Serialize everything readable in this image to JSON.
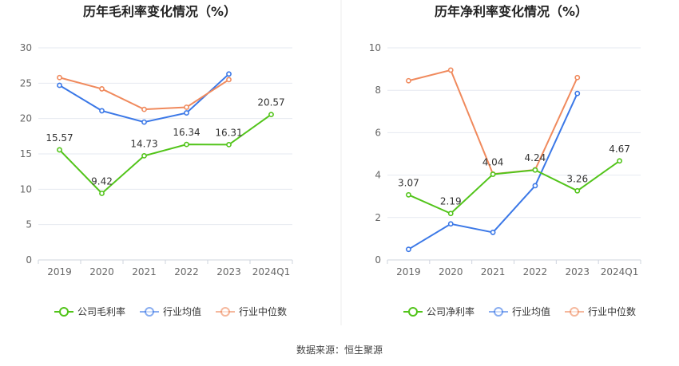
{
  "source": {
    "label": "数据来源：",
    "value": "恒生聚源"
  },
  "colors": {
    "company": "#52c41a",
    "industry_avg": "#3b78e7",
    "industry_median": "#f08a5d",
    "grid": "#e6e9f0",
    "axis_text": "#666666",
    "title_text": "#222222"
  },
  "chart_data": [
    {
      "type": "line",
      "title": "历年毛利率变化情况（%）",
      "categories": [
        "2019",
        "2020",
        "2021",
        "2022",
        "2023",
        "2024Q1"
      ],
      "ylim": [
        0,
        30
      ],
      "yticks": [
        0,
        5,
        10,
        15,
        20,
        25,
        30
      ],
      "grid": true,
      "legend_position": "bottom",
      "series": [
        {
          "name": "公司毛利率",
          "key": "company",
          "values": [
            15.57,
            9.42,
            14.73,
            16.34,
            16.31,
            20.57
          ],
          "labels": [
            "15.57",
            "9.42",
            "14.73",
            "16.34",
            "16.31",
            "20.57"
          ]
        },
        {
          "name": "行业均值",
          "key": "industry_avg",
          "values": [
            24.7,
            21.1,
            19.5,
            20.8,
            26.3,
            null
          ]
        },
        {
          "name": "行业中位数",
          "key": "industry_median",
          "values": [
            25.8,
            24.2,
            21.3,
            21.6,
            25.5,
            null
          ]
        }
      ]
    },
    {
      "type": "line",
      "title": "历年净利率变化情况（%）",
      "categories": [
        "2019",
        "2020",
        "2021",
        "2022",
        "2023",
        "2024Q1"
      ],
      "ylim": [
        0,
        10
      ],
      "yticks": [
        0,
        2,
        4,
        6,
        8,
        10
      ],
      "grid": true,
      "legend_position": "bottom",
      "series": [
        {
          "name": "公司净利率",
          "key": "company",
          "values": [
            3.07,
            2.19,
            4.04,
            4.24,
            3.26,
            4.67
          ],
          "labels": [
            "3.07",
            "2.19",
            "4.04",
            "4.24",
            "3.26",
            "4.67"
          ]
        },
        {
          "name": "行业均值",
          "key": "industry_avg",
          "values": [
            0.5,
            1.7,
            1.3,
            3.5,
            7.85,
            null
          ]
        },
        {
          "name": "行业中位数",
          "key": "industry_median",
          "values": [
            8.45,
            8.95,
            4.05,
            4.25,
            8.6,
            null
          ]
        }
      ]
    }
  ]
}
